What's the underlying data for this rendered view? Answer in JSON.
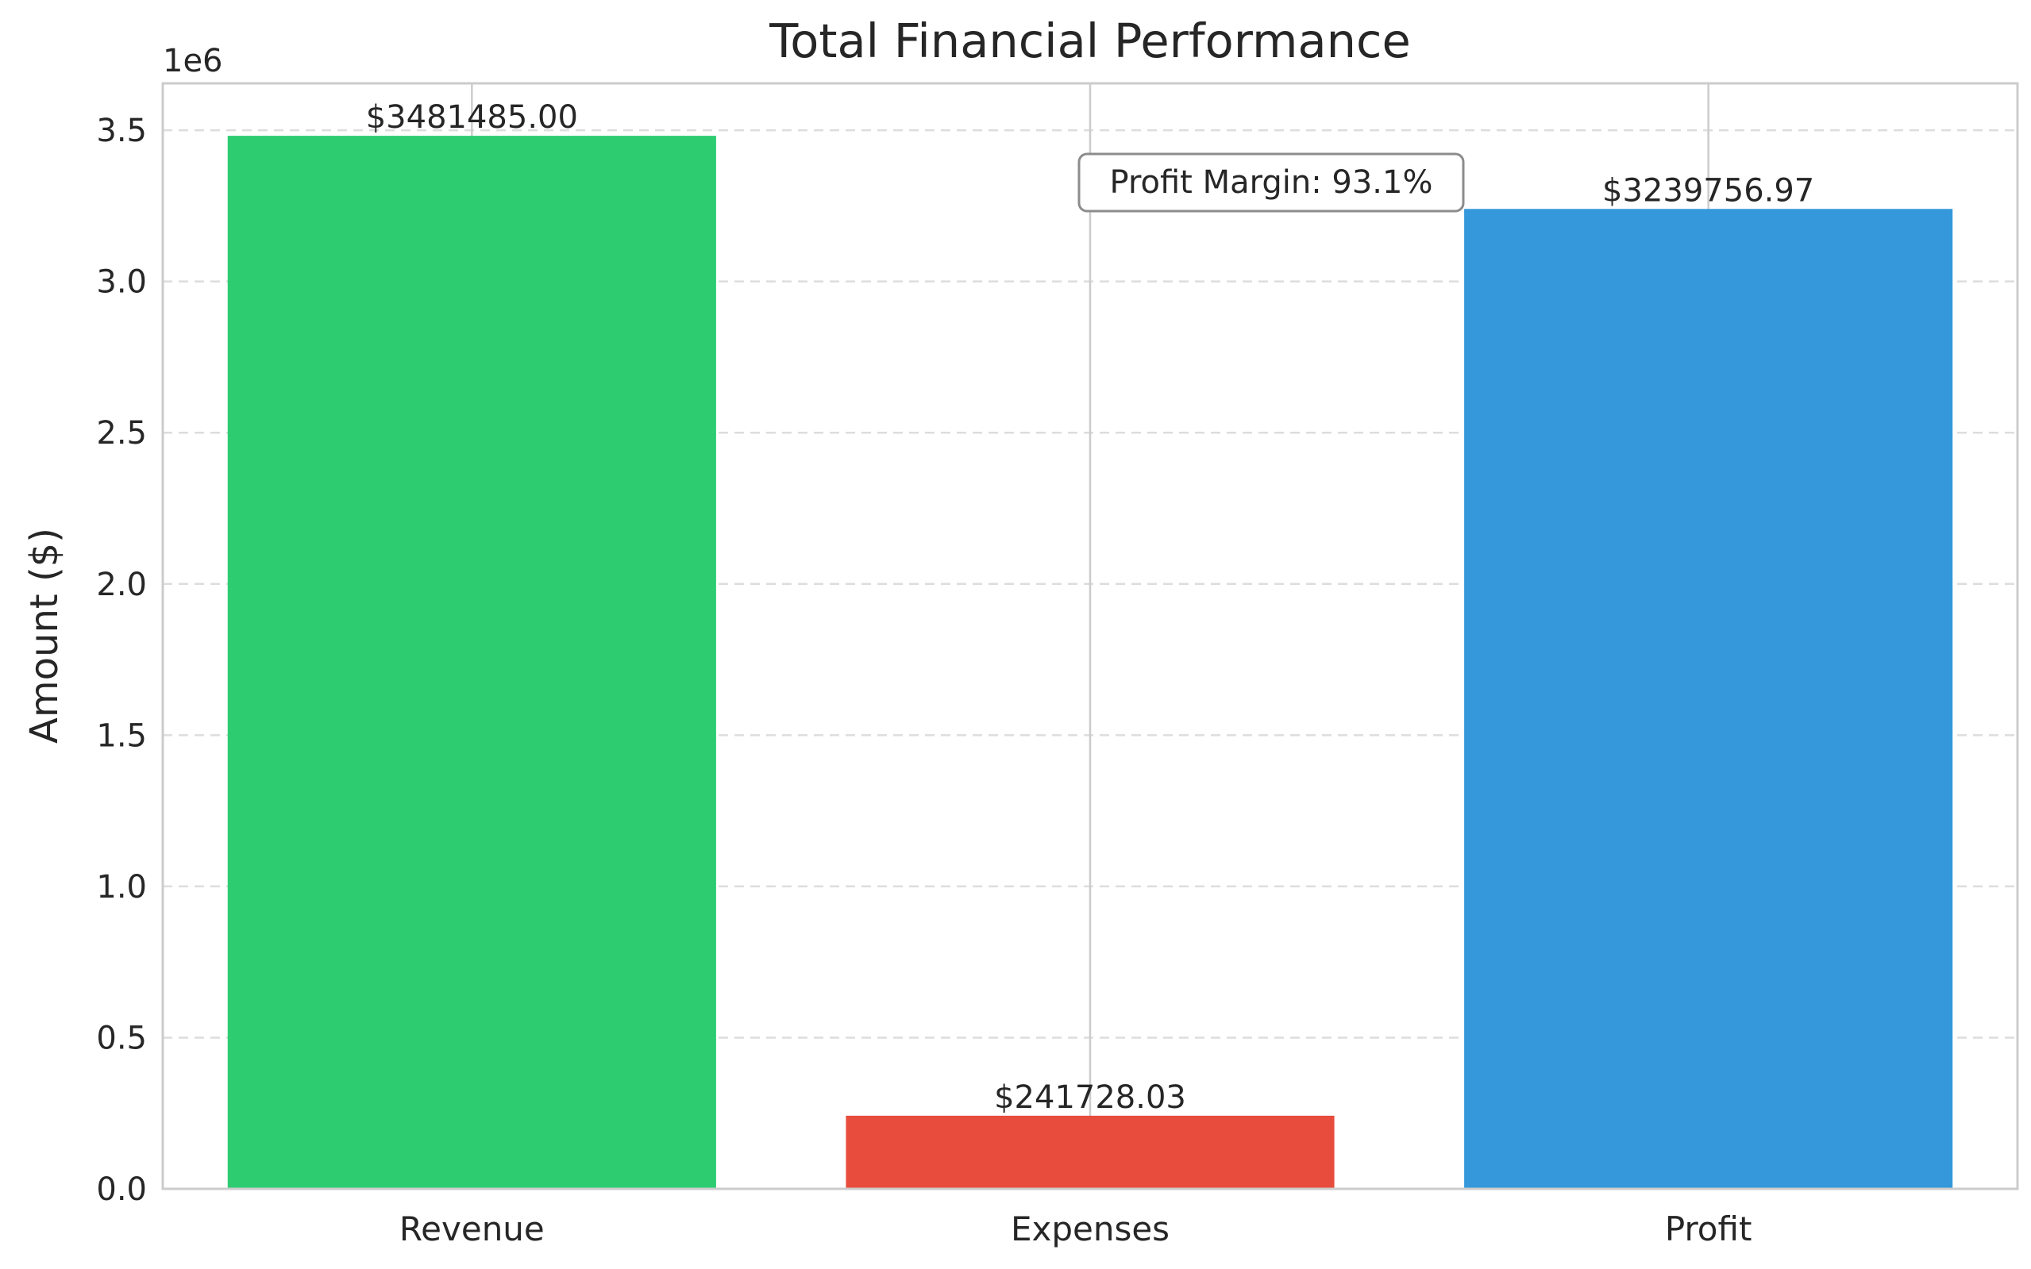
{
  "chart_data": {
    "type": "bar",
    "title": "Total Financial Performance",
    "xlabel": "",
    "ylabel": "Amount ($)",
    "offset_label": "1e6",
    "categories": [
      "Revenue",
      "Expenses",
      "Profit"
    ],
    "values": [
      3481485.0,
      241728.03,
      3239756.97
    ],
    "value_labels": [
      "$3481485.00",
      "$241728.03",
      "$3239756.97"
    ],
    "colors": [
      "#2ecc71",
      "#e74c3c",
      "#3498db"
    ],
    "ylim": [
      0,
      3655000
    ],
    "yticks": [
      0,
      500000,
      1000000,
      1500000,
      2000000,
      2500000,
      3000000,
      3500000
    ],
    "ytick_labels": [
      "0.0",
      "0.5",
      "1.0",
      "1.5",
      "2.0",
      "2.5",
      "3.0",
      "3.5"
    ],
    "grid": true,
    "legend": "none",
    "annotation": "Profit Margin: 93.1%"
  }
}
